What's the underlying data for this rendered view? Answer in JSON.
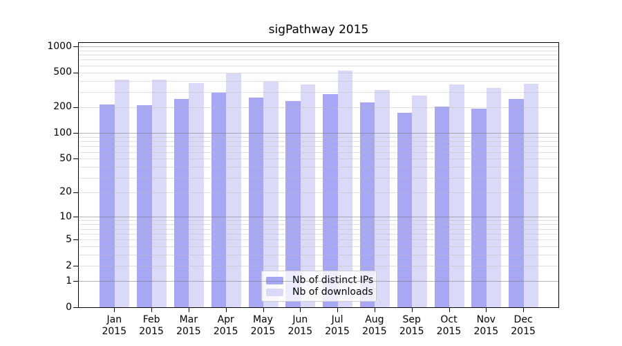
{
  "chart": {
    "title": "sigPathway 2015"
  },
  "legend": {
    "items": [
      {
        "label": "Nb of distinct IPs",
        "series": "ips"
      },
      {
        "label": "Nb of downloads",
        "series": "downloads"
      }
    ]
  },
  "colors": {
    "ips": "#a7a7f3",
    "downloads": "#dadaf8",
    "grid_major": "rgba(120,120,120,0.55)",
    "grid_minor": "rgba(185,185,185,0.45)",
    "axis": "#000000"
  },
  "chart_data": {
    "type": "bar",
    "title": "sigPathway 2015",
    "y_scale": "log1p",
    "ylim": [
      0,
      1100
    ],
    "grid": "horizontal-on-top",
    "legend_position": "bottom-center-inside",
    "categories": [
      "Jan",
      "Feb",
      "Mar",
      "Apr",
      "May",
      "Jun",
      "Jul",
      "Aug",
      "Sep",
      "Oct",
      "Nov",
      "Dec"
    ],
    "x_year": "2015",
    "y_tick_values": [
      1000,
      500,
      200,
      100,
      50,
      20,
      10,
      5,
      2,
      1,
      0
    ],
    "series": [
      {
        "name": "Nb of distinct IPs",
        "color_key": "ips",
        "values": [
          212,
          209,
          248,
          292,
          258,
          236,
          283,
          225,
          173,
          202,
          192,
          249
        ]
      },
      {
        "name": "Nb of downloads",
        "color_key": "downloads",
        "values": [
          417,
          412,
          378,
          485,
          390,
          367,
          523,
          316,
          271,
          362,
          330,
          369
        ]
      }
    ]
  }
}
